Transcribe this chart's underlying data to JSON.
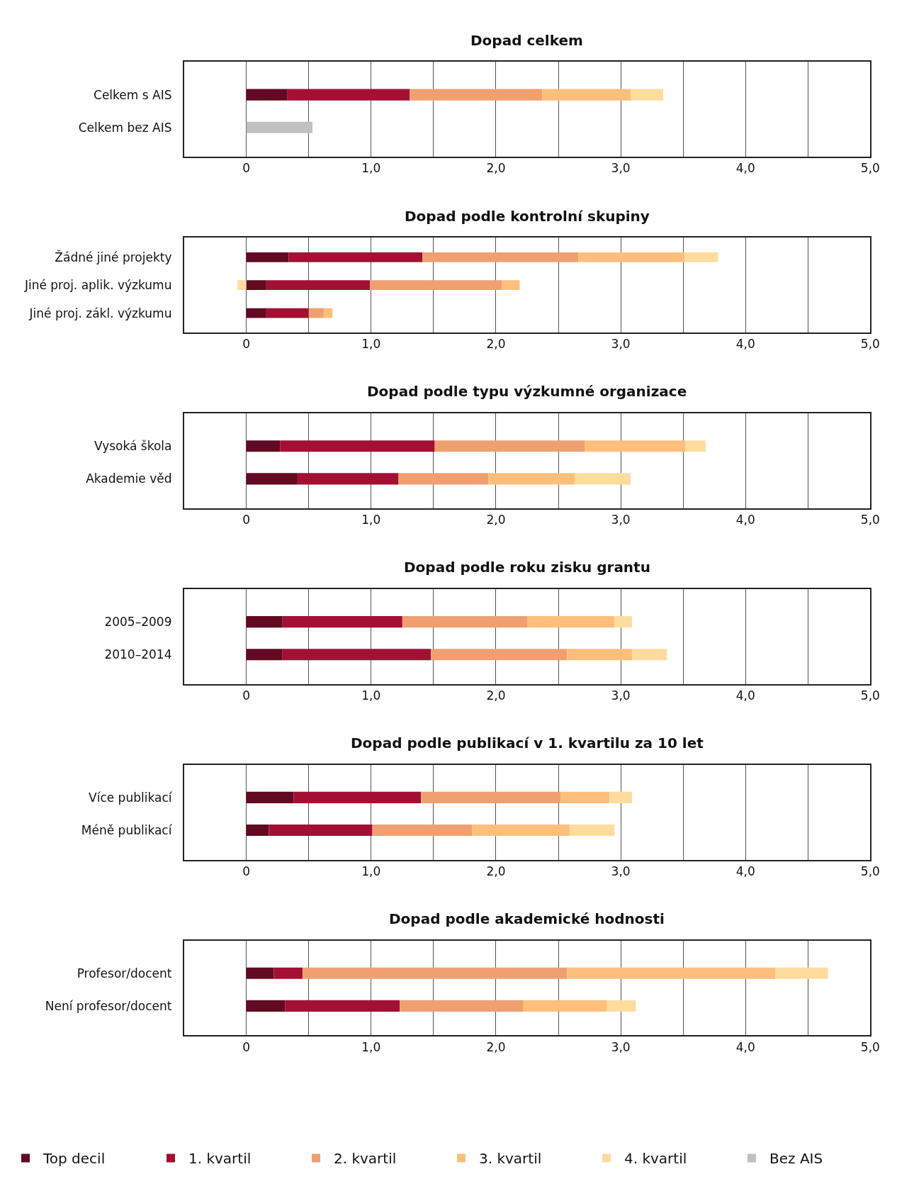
{
  "chart_data": [
    {
      "type": "bar",
      "orientation": "horizontal",
      "stacked": true,
      "title": "Dopad celkem",
      "categories": [
        "Celkem s AIS",
        "Celkem bez AIS"
      ],
      "xlim": [
        -0.5,
        5
      ],
      "xticks": [
        0,
        {
          "value": 0.5,
          "label": null
        },
        {
          "value": 1,
          "label": "1,0"
        },
        {
          "value": 1.5,
          "label": null
        },
        {
          "value": 2,
          "label": "2,0"
        },
        {
          "value": 2.5,
          "label": null
        },
        {
          "value": 3,
          "label": "3,0"
        },
        {
          "value": 3.5,
          "label": null
        },
        {
          "value": 4,
          "label": "4,0"
        },
        {
          "value": 4.5,
          "label": null
        },
        {
          "value": 5,
          "label": "5,0"
        }
      ],
      "grid": "x",
      "legend": "bottom",
      "series": [
        {
          "name": "Top decil",
          "color": "#620a22",
          "values": [
            0.33,
            null
          ]
        },
        {
          "name": "1. kvartil",
          "color": "#a31034",
          "values": [
            0.98,
            null
          ]
        },
        {
          "name": "2. kvartil",
          "color": "#f0a070",
          "values": [
            1.06,
            null
          ]
        },
        {
          "name": "3. kvartil",
          "color": "#febf7c",
          "values": [
            0.71,
            null
          ]
        },
        {
          "name": "4. kvartil",
          "color": "#fedc9e",
          "values": [
            0.26,
            null
          ]
        },
        {
          "name": "Bez AIS",
          "color": "#c0c0c0",
          "values": [
            null,
            0.53
          ]
        }
      ]
    },
    {
      "type": "bar",
      "orientation": "horizontal",
      "stacked": true,
      "title": "Dopad podle kontrolní skupiny",
      "categories": [
        "Žádné jiné projekty",
        "Jiné proj. aplik. výzkumu",
        "Jiné proj. zákl. výzkumu"
      ],
      "xlim": [
        -0.5,
        5
      ],
      "xticks": [
        0,
        {
          "value": 0.5,
          "label": null
        },
        {
          "value": 1,
          "label": "1,0"
        },
        {
          "value": 1.5,
          "label": null
        },
        {
          "value": 2,
          "label": "2,0"
        },
        {
          "value": 2.5,
          "label": null
        },
        {
          "value": 3,
          "label": "3,0"
        },
        {
          "value": 3.5,
          "label": null
        },
        {
          "value": 4,
          "label": "4,0"
        },
        {
          "value": 4.5,
          "label": null
        },
        {
          "value": 5,
          "label": "5,0"
        }
      ],
      "grid": "x",
      "series": [
        {
          "color": "#620a22",
          "values": [
            0.34,
            0.16,
            0.16
          ]
        },
        {
          "color": "#a31034",
          "values": [
            1.07,
            0.83,
            0.34
          ]
        },
        {
          "color": "#f0a070",
          "values": [
            1.25,
            1.06,
            0.12
          ]
        },
        {
          "color": "#febf7c",
          "values": [
            0.85,
            0.14,
            0.07
          ]
        },
        {
          "color": "#fedc9e",
          "values": [
            0.27,
            -0.07,
            null
          ]
        }
      ]
    },
    {
      "type": "bar",
      "orientation": "horizontal",
      "stacked": true,
      "title": "Dopad podle typu výzkumné organizace",
      "categories": [
        "Vysoká škola",
        "Akademie věd"
      ],
      "xlim": [
        -0.5,
        5
      ],
      "xticks": [
        0,
        {
          "value": 0.5,
          "label": null
        },
        {
          "value": 1,
          "label": "1,0"
        },
        {
          "value": 1.5,
          "label": null
        },
        {
          "value": 2,
          "label": "2,0"
        },
        {
          "value": 2.5,
          "label": null
        },
        {
          "value": 3,
          "label": "3,0"
        },
        {
          "value": 3.5,
          "label": null
        },
        {
          "value": 4,
          "label": "4,0"
        },
        {
          "value": 4.5,
          "label": null
        },
        {
          "value": 5,
          "label": "5,0"
        }
      ],
      "grid": "x",
      "series": [
        {
          "color": "#620a22",
          "values": [
            0.27,
            0.41
          ]
        },
        {
          "color": "#a31034",
          "values": [
            1.24,
            0.81
          ]
        },
        {
          "color": "#f0a070",
          "values": [
            1.2,
            0.72
          ]
        },
        {
          "color": "#febf7c",
          "values": [
            0.81,
            0.69
          ]
        },
        {
          "color": "#fedc9e",
          "values": [
            0.16,
            0.45
          ]
        }
      ]
    },
    {
      "type": "bar",
      "orientation": "horizontal",
      "stacked": true,
      "title": "Dopad podle roku zisku grantu",
      "categories": [
        "2005–2009",
        "2010–2014"
      ],
      "xlim": [
        -0.5,
        5
      ],
      "xticks": [
        0,
        {
          "value": 0.5,
          "label": null
        },
        {
          "value": 1,
          "label": "1,0"
        },
        {
          "value": 1.5,
          "label": null
        },
        {
          "value": 2,
          "label": "2,0"
        },
        {
          "value": 2.5,
          "label": null
        },
        {
          "value": 3,
          "label": "3,0"
        },
        {
          "value": 3.5,
          "label": null
        },
        {
          "value": 4,
          "label": "4,0"
        },
        {
          "value": 4.5,
          "label": null
        },
        {
          "value": 5,
          "label": "5,0"
        }
      ],
      "grid": "x",
      "series": [
        {
          "color": "#620a22",
          "values": [
            0.29,
            0.29
          ]
        },
        {
          "color": "#a31034",
          "values": [
            0.96,
            1.19
          ]
        },
        {
          "color": "#f0a070",
          "values": [
            1.0,
            1.09
          ]
        },
        {
          "color": "#febf7c",
          "values": [
            0.7,
            0.52
          ]
        },
        {
          "color": "#fedc9e",
          "values": [
            0.14,
            0.28
          ]
        }
      ]
    },
    {
      "type": "bar",
      "orientation": "horizontal",
      "stacked": true,
      "title": "Dopad podle publikací v 1. kvartilu za 10 let",
      "categories": [
        "Více publikací",
        "Méně publikací"
      ],
      "xlim": [
        -0.5,
        5
      ],
      "xticks": [
        0,
        {
          "value": 0.5,
          "label": null
        },
        {
          "value": 1,
          "label": "1,0"
        },
        {
          "value": 1.5,
          "label": null
        },
        {
          "value": 2,
          "label": "2,0"
        },
        {
          "value": 2.5,
          "label": null
        },
        {
          "value": 3,
          "label": "3,0"
        },
        {
          "value": 3.5,
          "label": null
        },
        {
          "value": 4,
          "label": "4,0"
        },
        {
          "value": 4.5,
          "label": null
        },
        {
          "value": 5,
          "label": "5,0"
        }
      ],
      "grid": "x",
      "series": [
        {
          "color": "#620a22",
          "values": [
            0.38,
            0.18
          ]
        },
        {
          "color": "#a31034",
          "values": [
            1.02,
            0.83
          ]
        },
        {
          "color": "#f0a070",
          "values": [
            1.12,
            0.8
          ]
        },
        {
          "color": "#febf7c",
          "values": [
            0.39,
            0.78
          ]
        },
        {
          "color": "#fedc9e",
          "values": [
            0.18,
            0.36
          ]
        }
      ]
    },
    {
      "type": "bar",
      "orientation": "horizontal",
      "stacked": true,
      "title": "Dopad podle akademické hodnosti",
      "categories": [
        "Profesor/docent",
        "Není profesor/docent"
      ],
      "xlim": [
        -0.5,
        5
      ],
      "xticks": [
        0,
        {
          "value": 0.5,
          "label": null
        },
        {
          "value": 1,
          "label": "1,0"
        },
        {
          "value": 1.5,
          "label": null
        },
        {
          "value": 2,
          "label": "2,0"
        },
        {
          "value": 2.5,
          "label": null
        },
        {
          "value": 3,
          "label": "3,0"
        },
        {
          "value": 3.5,
          "label": null
        },
        {
          "value": 4,
          "label": "4,0"
        },
        {
          "value": 4.5,
          "label": null
        },
        {
          "value": 5,
          "label": "5,0"
        }
      ],
      "grid": "x",
      "series": [
        {
          "color": "#620a22",
          "values": [
            0.22,
            0.31
          ]
        },
        {
          "color": "#a31034",
          "values": [
            0.23,
            0.92
          ]
        },
        {
          "color": "#f0a070",
          "values": [
            2.12,
            0.99
          ]
        },
        {
          "color": "#febf7c",
          "values": [
            1.67,
            0.67
          ]
        },
        {
          "color": "#fedc9e",
          "values": [
            0.42,
            0.23
          ]
        }
      ]
    }
  ]
}
